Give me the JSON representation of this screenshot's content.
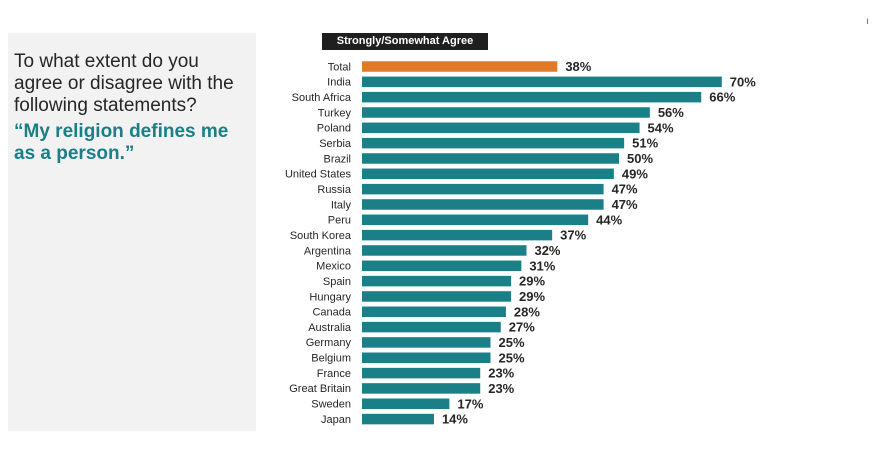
{
  "panel": {
    "question": "To what extent do you agree or disagree with the following statements?",
    "statement": "“My religion defines me as a person.”"
  },
  "header": {
    "badge": "Strongly/Somewhat Agree"
  },
  "corner_mark": "ı",
  "colors": {
    "highlight": "#e07a28",
    "bar": "#1a7f86",
    "text": "#262626"
  },
  "chart_data": {
    "type": "bar",
    "orientation": "horizontal",
    "title": "Strongly/Somewhat Agree",
    "categories": [
      "Total",
      "India",
      "South Africa",
      "Turkey",
      "Poland",
      "Serbia",
      "Brazil",
      "United States",
      "Russia",
      "Italy",
      "Peru",
      "South Korea",
      "Argentina",
      "Mexico",
      "Spain",
      "Hungary",
      "Canada",
      "Australia",
      "Germany",
      "Belgium",
      "France",
      "Great Britain",
      "Sweden",
      "Japan"
    ],
    "values": [
      38,
      70,
      66,
      56,
      54,
      51,
      50,
      49,
      47,
      47,
      44,
      37,
      32,
      31,
      29,
      29,
      28,
      27,
      25,
      25,
      23,
      23,
      17,
      14
    ],
    "value_labels": [
      "38%",
      "70%",
      "66%",
      "56%",
      "54%",
      "51%",
      "50%",
      "49%",
      "47%",
      "47%",
      "44%",
      "37%",
      "32%",
      "31%",
      "29%",
      "29%",
      "28%",
      "27%",
      "25%",
      "25%",
      "23%",
      "23%",
      "17%",
      "14%"
    ],
    "highlight_categories": [
      "Total"
    ],
    "xlim": [
      0,
      100
    ],
    "unit": "%",
    "grid": false,
    "legend": "none"
  }
}
